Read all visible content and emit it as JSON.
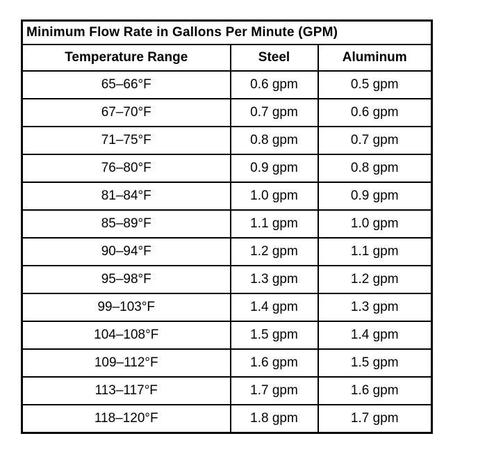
{
  "table": {
    "title": "Minimum Flow Rate in Gallons Per Minute (GPM)",
    "columns": [
      "Temperature Range",
      "Steel",
      "Aluminum"
    ],
    "rows": [
      {
        "temp": "65–66°F",
        "steel": "0.6 gpm",
        "aluminum": "0.5 gpm"
      },
      {
        "temp": "67–70°F",
        "steel": "0.7 gpm",
        "aluminum": "0.6 gpm"
      },
      {
        "temp": "71–75°F",
        "steel": "0.8 gpm",
        "aluminum": "0.7 gpm"
      },
      {
        "temp": "76–80°F",
        "steel": "0.9 gpm",
        "aluminum": "0.8 gpm"
      },
      {
        "temp": "81–84°F",
        "steel": "1.0 gpm",
        "aluminum": "0.9 gpm"
      },
      {
        "temp": "85–89°F",
        "steel": "1.1 gpm",
        "aluminum": "1.0 gpm"
      },
      {
        "temp": "90–94°F",
        "steel": "1.2 gpm",
        "aluminum": "1.1 gpm"
      },
      {
        "temp": "95–98°F",
        "steel": "1.3 gpm",
        "aluminum": "1.2 gpm"
      },
      {
        "temp": "99–103°F",
        "steel": "1.4 gpm",
        "aluminum": "1.3 gpm"
      },
      {
        "temp": "104–108°F",
        "steel": "1.5 gpm",
        "aluminum": "1.4 gpm"
      },
      {
        "temp": "109–112°F",
        "steel": "1.6 gpm",
        "aluminum": "1.5 gpm"
      },
      {
        "temp": "113–117°F",
        "steel": "1.7 gpm",
        "aluminum": "1.6 gpm"
      },
      {
        "temp": "118–120°F",
        "steel": "1.8 gpm",
        "aluminum": "1.7 gpm"
      }
    ],
    "colors": {
      "border": "#000000",
      "text": "#000000",
      "background": "#ffffff"
    }
  }
}
